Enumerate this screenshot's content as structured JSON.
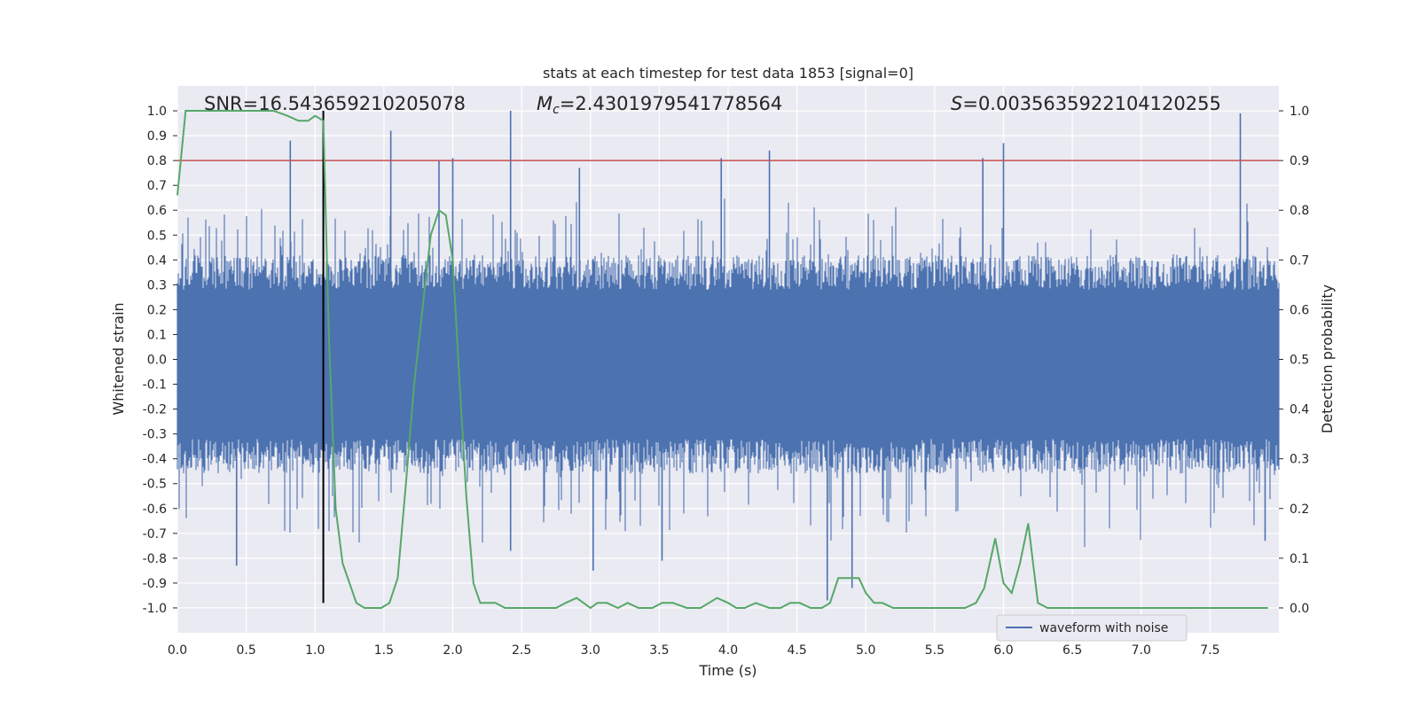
{
  "chart_data": {
    "type": "line",
    "title": "stats at each timestep for test data 1853 [signal=0]",
    "xlabel": "Time (s)",
    "ylabel": "Whitened strain",
    "y2label": "Detection probability",
    "xlim": [
      0,
      8
    ],
    "ylim": [
      -1.1,
      1.1
    ],
    "y2lim": [
      -0.05,
      1.05
    ],
    "xticks": [
      0.0,
      0.5,
      1.0,
      1.5,
      2.0,
      2.5,
      3.0,
      3.5,
      4.0,
      4.5,
      5.0,
      5.5,
      6.0,
      6.5,
      7.0,
      7.5
    ],
    "xtick_labels": [
      "0.0",
      "0.5",
      "1.0",
      "1.5",
      "2.0",
      "2.5",
      "3.0",
      "3.5",
      "4.0",
      "4.5",
      "5.0",
      "5.5",
      "6.0",
      "6.5",
      "7.0",
      "7.5"
    ],
    "yticks": [
      1.0,
      0.9,
      0.8,
      0.7,
      0.6,
      0.5,
      0.4,
      0.3,
      0.2,
      0.1,
      0.0,
      -0.1,
      -0.2,
      -0.3,
      -0.4,
      -0.5,
      -0.6,
      -0.7,
      -0.8,
      -0.9,
      -1.0
    ],
    "ytick_labels": [
      "1.0",
      "0.9",
      "0.8",
      "0.7",
      "0.6",
      "0.5",
      "0.4",
      "0.3",
      "0.2",
      "0.1",
      "0.0",
      "-0.1",
      "-0.2",
      "-0.3",
      "-0.4",
      "-0.5",
      "-0.6",
      "-0.7",
      "-0.8",
      "-0.9",
      "-1.0"
    ],
    "y2ticks": [
      1.0,
      0.9,
      0.8,
      0.7,
      0.6,
      0.5,
      0.4,
      0.3,
      0.2,
      0.1,
      0.0
    ],
    "y2tick_labels": [
      "1.0",
      "0.9",
      "0.8",
      "0.7",
      "0.6",
      "0.5",
      "0.4",
      "0.3",
      "0.2",
      "0.1",
      "0.0"
    ],
    "annotations": {
      "snr": "SNR=16.543659210205078",
      "mc": "=2.4301979541778564",
      "mc_symbol": "M",
      "mc_sub": "c",
      "s": "=0.0035635922104120255",
      "s_symbol": "S"
    },
    "threshold": {
      "value": 0.9,
      "axis": "y2",
      "color": "#c44e52"
    },
    "marker_time": 1.06,
    "legend": {
      "label": "waveform with noise",
      "placement": "lower-right"
    },
    "series": [
      {
        "name": "waveform with noise",
        "axis": "y",
        "color": "#4c72b0",
        "style": "noise-band",
        "band_core": [
          -0.2,
          0.2
        ],
        "band_outer": [
          -0.4,
          0.4
        ],
        "peaks": [
          {
            "x": 0.82,
            "y": 0.88
          },
          {
            "x": 1.55,
            "y": 0.92
          },
          {
            "x": 1.9,
            "y": 0.8
          },
          {
            "x": 2.0,
            "y": 0.81
          },
          {
            "x": 2.42,
            "y": 1.0
          },
          {
            "x": 2.92,
            "y": 0.77
          },
          {
            "x": 3.95,
            "y": 0.81
          },
          {
            "x": 4.3,
            "y": 0.84
          },
          {
            "x": 5.85,
            "y": 0.81
          },
          {
            "x": 6.0,
            "y": 0.87
          },
          {
            "x": 7.72,
            "y": 0.99
          },
          {
            "x": 0.43,
            "y": -0.83
          },
          {
            "x": 2.42,
            "y": -0.77
          },
          {
            "x": 3.02,
            "y": -0.85
          },
          {
            "x": 3.52,
            "y": -0.81
          },
          {
            "x": 4.72,
            "y": -0.97
          },
          {
            "x": 4.9,
            "y": -0.92
          },
          {
            "x": 7.9,
            "y": -0.73
          }
        ]
      },
      {
        "name": "detection probability",
        "axis": "y2",
        "color": "#55a868",
        "x": [
          0.0,
          0.06,
          0.12,
          0.2,
          0.3,
          0.4,
          0.5,
          0.6,
          0.7,
          0.8,
          0.88,
          0.95,
          1.0,
          1.06,
          1.1,
          1.15,
          1.2,
          1.25,
          1.3,
          1.36,
          1.42,
          1.48,
          1.54,
          1.6,
          1.66,
          1.72,
          1.78,
          1.84,
          1.9,
          1.95,
          2.0,
          2.05,
          2.1,
          2.15,
          2.2,
          2.25,
          2.31,
          2.38,
          2.45,
          2.52,
          2.6,
          2.68,
          2.75,
          2.82,
          2.9,
          2.95,
          3.0,
          3.05,
          3.12,
          3.2,
          3.27,
          3.35,
          3.45,
          3.52,
          3.6,
          3.7,
          3.8,
          3.86,
          3.92,
          4.0,
          4.06,
          4.12,
          4.2,
          4.3,
          4.38,
          4.45,
          4.52,
          4.6,
          4.68,
          4.74,
          4.8,
          4.87,
          4.95,
          5.0,
          5.06,
          5.12,
          5.2,
          5.3,
          5.4,
          5.5,
          5.62,
          5.72,
          5.8,
          5.86,
          5.94,
          6.0,
          6.06,
          6.12,
          6.18,
          6.25,
          6.32,
          6.4,
          6.55,
          6.7,
          6.85,
          7.0,
          7.2,
          7.4,
          7.6,
          7.8,
          7.92
        ],
        "values": [
          0.83,
          1.0,
          1.0,
          1.0,
          1.0,
          1.0,
          1.0,
          1.0,
          1.0,
          0.99,
          0.98,
          0.98,
          0.99,
          0.98,
          0.55,
          0.2,
          0.09,
          0.05,
          0.01,
          0.0,
          0.0,
          0.0,
          0.01,
          0.06,
          0.25,
          0.45,
          0.6,
          0.75,
          0.8,
          0.79,
          0.7,
          0.45,
          0.22,
          0.05,
          0.01,
          0.01,
          0.01,
          0.0,
          0.0,
          0.0,
          0.0,
          0.0,
          0.0,
          0.01,
          0.02,
          0.01,
          0.0,
          0.01,
          0.01,
          0.0,
          0.01,
          0.0,
          0.0,
          0.01,
          0.01,
          0.0,
          0.0,
          0.01,
          0.02,
          0.01,
          0.0,
          0.0,
          0.01,
          0.0,
          0.0,
          0.01,
          0.01,
          0.0,
          0.0,
          0.01,
          0.06,
          0.06,
          0.06,
          0.03,
          0.01,
          0.01,
          0.0,
          0.0,
          0.0,
          0.0,
          0.0,
          0.0,
          0.01,
          0.04,
          0.14,
          0.05,
          0.03,
          0.09,
          0.17,
          0.01,
          0.0,
          0.0,
          0.0,
          0.0,
          0.0,
          0.0,
          0.0,
          0.0,
          0.0,
          0.0,
          0.0
        ]
      }
    ]
  }
}
